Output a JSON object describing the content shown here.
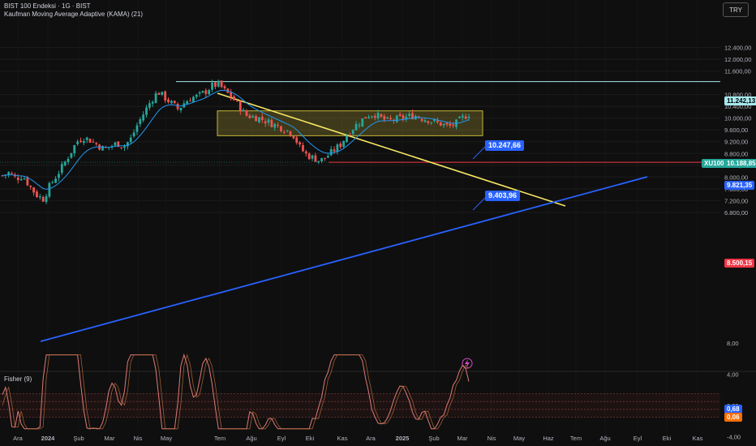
{
  "header": {
    "title": "BIST 100 Endeksi · 1G · BIST",
    "indicator": "Kaufman Moving Average Adaptive (KAMA) (21)",
    "currency": "TRY"
  },
  "indicator_pane": {
    "title": "Fisher (9)",
    "y_ticks": [
      "8,00",
      "4,00",
      "0,00",
      "-4,00"
    ],
    "value_blue": "0,68",
    "value_orange": "0,06"
  },
  "price_axis": {
    "ticks": [
      "12.400,00",
      "12.000,00",
      "11.600,00",
      "10.800,00",
      "10.400,00",
      "10.000,00",
      "9.600,00",
      "9.200,00",
      "8.800,00",
      "8.400,00",
      "8.000,00",
      "7.600,00",
      "7.200,00",
      "6.800,00"
    ]
  },
  "time_axis": {
    "ticks": [
      "Ara",
      "2024",
      "Şub",
      "Mar",
      "Nis",
      "May",
      "Tem",
      "Ağu",
      "Eyl",
      "Eki",
      "Kas",
      "Ara",
      "2025",
      "Şub",
      "Mar",
      "Nis",
      "May",
      "Haz",
      "Tem",
      "Ağu",
      "Eyl",
      "Eki",
      "Kas"
    ]
  },
  "labels": {
    "high_line": "11.242,13",
    "range_top": "10.247,66",
    "range_bottom": "9.403,96",
    "symbol_tag": "XU100",
    "last_price": "10.188,85",
    "kama_value": "9.821,35",
    "support_line": "8.500,15"
  },
  "colors": {
    "up": "#26a69a",
    "down": "#ef5350",
    "kama": "#2196f3",
    "trend_upper": "#f5e663",
    "trend_lower": "#2962ff",
    "range_box": "#c9b83a",
    "high_line": "#a5e8ec",
    "support": "#f23645"
  },
  "chart_data": {
    "type": "candlestick",
    "y_axis_scale": "price",
    "horizontal_levels": [
      11242.13,
      8500.15
    ],
    "range_box": {
      "top": 10247.66,
      "bottom": 9403.96
    },
    "price_path": [
      8050,
      8150,
      7950,
      8050,
      7700,
      7400,
      7250,
      7700,
      8050,
      8400,
      8800,
      9200,
      9350,
      9250,
      9100,
      8950,
      9050,
      9150,
      9050,
      9300,
      9800,
      10200,
      10600,
      10900,
      10700,
      10500,
      10300,
      10550,
      10700,
      10750,
      10900,
      11100,
      11150,
      10900,
      10700,
      10400,
      10100,
      10050,
      10000,
      9900,
      9800,
      9700,
      9600,
      9450,
      9000,
      8750,
      8650,
      8550,
      8700,
      8900,
      9100,
      9450,
      9700,
      9900,
      10100,
      10150,
      10000,
      9900,
      9950,
      10000,
      10050,
      10100,
      10000,
      9950,
      9850,
      9800,
      9700,
      9800,
      10000,
      10150
    ]
  }
}
